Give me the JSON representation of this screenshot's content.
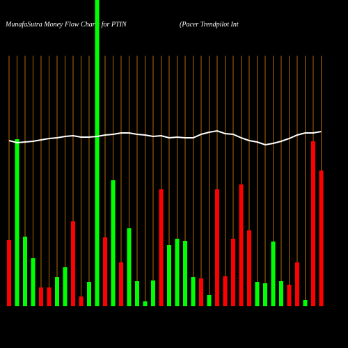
{
  "chart_data": {
    "type": "bar",
    "title": "MunafaSutra  Money Flow  Charts for PTIN",
    "subtitle": "(Pacer Trendpilot Int",
    "categories": [
      null,
      null,
      null,
      null,
      null,
      null,
      null,
      null,
      null,
      null,
      null,
      null,
      null,
      null,
      null,
      null,
      null,
      null,
      null,
      null,
      null,
      null,
      null,
      null,
      null,
      null,
      null,
      null,
      null,
      null,
      null,
      null,
      null,
      null,
      null,
      null,
      null,
      null,
      null,
      null
    ],
    "values": [
      95,
      240,
      100,
      69,
      27,
      27,
      42,
      56,
      122,
      14,
      35,
      445,
      99,
      181,
      63,
      112,
      36,
      7,
      37,
      168,
      88,
      97,
      94,
      42,
      40,
      16,
      168,
      43,
      97,
      175,
      109,
      35,
      33,
      93,
      36,
      31,
      63,
      9,
      237,
      195
    ],
    "bar_colors": [
      "#ff0000",
      "#00ff00",
      "#00ff00",
      "#00ff00",
      "#ff0000",
      "#ff0000",
      "#00ff00",
      "#00ff00",
      "#ff0000",
      "#ff0000",
      "#00ff00",
      "#00ff00",
      "#ff0000",
      "#00ff00",
      "#ff0000",
      "#00ff00",
      "#00ff00",
      "#00ff00",
      "#00ff00",
      "#ff0000",
      "#00ff00",
      "#00ff00",
      "#00ff00",
      "#00ff00",
      "#ff0000",
      "#00ff00",
      "#ff0000",
      "#ff0000",
      "#ff0000",
      "#ff0000",
      "#ff0000",
      "#00ff00",
      "#00ff00",
      "#00ff00",
      "#00ff00",
      "#ff0000",
      "#ff0000",
      "#00ff00",
      "#ff0000",
      "#ff0000"
    ],
    "line_values": [
      238,
      235,
      236,
      237,
      239,
      241,
      242,
      244,
      245,
      243,
      243,
      244,
      246,
      247,
      249,
      249,
      247,
      246,
      244,
      245,
      242,
      243,
      242,
      242,
      247,
      250,
      252,
      248,
      247,
      242,
      238,
      236,
      232,
      234,
      237,
      241,
      246,
      249,
      249,
      251
    ],
    "line_color": "#ffffff",
    "ylim": [
      0,
      440
    ]
  }
}
